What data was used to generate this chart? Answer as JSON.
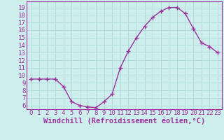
{
  "x": [
    0,
    1,
    2,
    3,
    4,
    5,
    6,
    7,
    8,
    9,
    10,
    11,
    12,
    13,
    14,
    15,
    16,
    17,
    18,
    19,
    20,
    21,
    22,
    23
  ],
  "y": [
    9.5,
    9.5,
    9.5,
    9.5,
    8.5,
    6.5,
    6.0,
    5.8,
    5.7,
    6.5,
    7.5,
    11.0,
    13.2,
    15.0,
    16.5,
    17.7,
    18.5,
    19.0,
    19.0,
    18.2,
    16.2,
    14.3,
    13.8,
    13.0
  ],
  "line_color": "#993399",
  "marker": "+",
  "marker_size": 4,
  "bg_color": "#ceeeed",
  "grid_color": "#b0d8d8",
  "xlabel": "Windchill (Refroidissement éolien,°C)",
  "xlabel_color": "#993399",
  "tick_color": "#993399",
  "spine_color": "#993399",
  "ylim": [
    5.5,
    19.8
  ],
  "xlim": [
    -0.5,
    23.5
  ],
  "yticks": [
    6,
    7,
    8,
    9,
    10,
    11,
    12,
    13,
    14,
    15,
    16,
    17,
    18,
    19
  ],
  "xticks": [
    0,
    1,
    2,
    3,
    4,
    5,
    6,
    7,
    8,
    9,
    10,
    11,
    12,
    13,
    14,
    15,
    16,
    17,
    18,
    19,
    20,
    21,
    22,
    23
  ],
  "line_width": 1.0,
  "font_size": 6.5,
  "xlabel_font_size": 7.5
}
